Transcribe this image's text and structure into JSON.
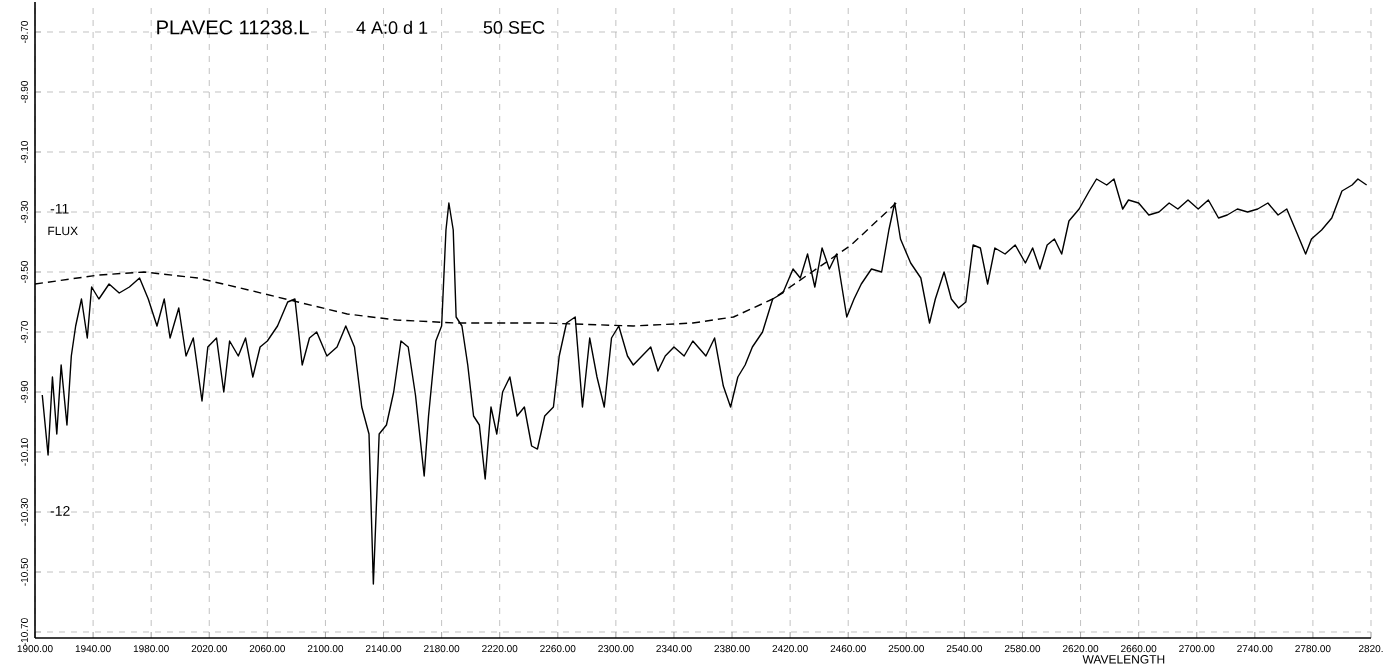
{
  "chart_data": {
    "type": "line",
    "title": "PLAVEC 11238.L",
    "xlabel": "WAVELENGTH",
    "annotations": [
      "4 A:0 d 1",
      "50 SEC",
      "-11",
      "FLUX",
      "-12"
    ],
    "xlim": [
      1900,
      2820
    ],
    "ylim": [
      -10.72,
      -8.6
    ],
    "xticks": [
      {
        "value": 1900,
        "label": "1900.00"
      },
      {
        "value": 1940,
        "label": "1940.00"
      },
      {
        "value": 1980,
        "label": "1980.00"
      },
      {
        "value": 2020,
        "label": "2020.00"
      },
      {
        "value": 2060,
        "label": "2060.00"
      },
      {
        "value": 2100,
        "label": "2100.00"
      },
      {
        "value": 2140,
        "label": "2140.00"
      },
      {
        "value": 2180,
        "label": "2180.00"
      },
      {
        "value": 2220,
        "label": "2220.00"
      },
      {
        "value": 2260,
        "label": "2260.00"
      },
      {
        "value": 2300,
        "label": "2300.00"
      },
      {
        "value": 2340,
        "label": "2340.00"
      },
      {
        "value": 2380,
        "label": "2380.00"
      },
      {
        "value": 2420,
        "label": "2420.00"
      },
      {
        "value": 2460,
        "label": "2460.00"
      },
      {
        "value": 2500,
        "label": "2500.00"
      },
      {
        "value": 2540,
        "label": "2540.00"
      },
      {
        "value": 2580,
        "label": "2580.00"
      },
      {
        "value": 2620,
        "label": "2620.00"
      },
      {
        "value": 2660,
        "label": "2660.00"
      },
      {
        "value": 2700,
        "label": "2700.00"
      },
      {
        "value": 2740,
        "label": "2740.00"
      },
      {
        "value": 2780,
        "label": "2780.00"
      },
      {
        "value": 2820,
        "label": "2820."
      }
    ],
    "yticks": [
      {
        "value": -8.7,
        "label": "-8.70"
      },
      {
        "value": -8.9,
        "label": "-8.90"
      },
      {
        "value": -9.1,
        "label": "-9.10"
      },
      {
        "value": -9.3,
        "label": "-9.30"
      },
      {
        "value": -9.5,
        "label": "-9.50"
      },
      {
        "value": -9.7,
        "label": "-9.70"
      },
      {
        "value": -9.9,
        "label": "-9.90"
      },
      {
        "value": -10.1,
        "label": "-10.10"
      },
      {
        "value": -10.3,
        "label": "-10.30"
      },
      {
        "value": -10.5,
        "label": "-10.50"
      },
      {
        "value": -10.7,
        "label": "-10.70"
      }
    ],
    "grid": true,
    "marker": "none",
    "series": [
      {
        "color": "#000000",
        "line_style": "solid",
        "x": [
          1905,
          1909,
          1912,
          1915,
          1918,
          1922,
          1925,
          1928,
          1932,
          1936,
          1939,
          1944,
          1951,
          1958,
          1965,
          1972,
          1978,
          1984,
          1989,
          1993,
          1999,
          2004,
          2009,
          2015,
          2019,
          2025,
          2030,
          2034,
          2040,
          2045,
          2050,
          2055,
          2060,
          2067,
          2074,
          2079,
          2084,
          2089,
          2094,
          2101,
          2108,
          2114,
          2120,
          2125,
          2130,
          2133,
          2137,
          2142,
          2147,
          2152,
          2157,
          2162,
          2168,
          2171,
          2176,
          2180,
          2183,
          2185,
          2188,
          2190,
          2194,
          2198,
          2202,
          2206,
          2210,
          2214,
          2218,
          2222,
          2227,
          2232,
          2237,
          2242,
          2246,
          2251,
          2257,
          2261,
          2266,
          2272,
          2277,
          2282,
          2287,
          2292,
          2297,
          2302,
          2308,
          2312,
          2318,
          2324,
          2329,
          2334,
          2340,
          2347,
          2353,
          2362,
          2368,
          2374,
          2379,
          2384,
          2389,
          2394,
          2401,
          2408,
          2415,
          2422,
          2427,
          2432,
          2437,
          2442,
          2447,
          2452,
          2459,
          2464,
          2469,
          2476,
          2483,
          2488,
          2492,
          2496,
          2503,
          2510,
          2516,
          2520,
          2526,
          2531,
          2536,
          2541,
          2546,
          2551,
          2556,
          2561,
          2568,
          2575,
          2582,
          2587,
          2592,
          2597,
          2602,
          2607,
          2612,
          2619,
          2626,
          2631,
          2638,
          2643,
          2649,
          2653,
          2660,
          2667,
          2674,
          2681,
          2687,
          2694,
          2701,
          2708,
          2715,
          2721,
          2728,
          2735,
          2742,
          2749,
          2756,
          2762,
          2769,
          2775,
          2779,
          2786,
          2793,
          2800,
          2807,
          2811,
          2817
        ],
        "values": [
          -9.91,
          -10.11,
          -9.85,
          -10.04,
          -9.81,
          -10.01,
          -9.78,
          -9.68,
          -9.59,
          -9.72,
          -9.55,
          -9.59,
          -9.54,
          -9.57,
          -9.55,
          -9.52,
          -9.59,
          -9.68,
          -9.59,
          -9.72,
          -9.62,
          -9.78,
          -9.72,
          -9.93,
          -9.75,
          -9.72,
          -9.9,
          -9.73,
          -9.78,
          -9.72,
          -9.85,
          -9.75,
          -9.73,
          -9.68,
          -9.6,
          -9.59,
          -9.81,
          -9.72,
          -9.7,
          -9.78,
          -9.75,
          -9.68,
          -9.75,
          -9.95,
          -10.04,
          -10.54,
          -10.04,
          -10.01,
          -9.9,
          -9.73,
          -9.75,
          -9.91,
          -10.18,
          -9.98,
          -9.73,
          -9.68,
          -9.36,
          -9.27,
          -9.36,
          -9.65,
          -9.68,
          -9.81,
          -9.98,
          -10.01,
          -10.19,
          -9.95,
          -10.04,
          -9.9,
          -9.85,
          -9.98,
          -9.95,
          -10.08,
          -10.09,
          -9.98,
          -9.95,
          -9.78,
          -9.67,
          -9.65,
          -9.95,
          -9.72,
          -9.85,
          -9.95,
          -9.72,
          -9.68,
          -9.78,
          -9.81,
          -9.78,
          -9.75,
          -9.83,
          -9.78,
          -9.75,
          -9.78,
          -9.73,
          -9.78,
          -9.72,
          -9.88,
          -9.95,
          -9.85,
          -9.81,
          -9.75,
          -9.7,
          -9.59,
          -9.57,
          -9.49,
          -9.52,
          -9.44,
          -9.55,
          -9.42,
          -9.49,
          -9.44,
          -9.65,
          -9.59,
          -9.54,
          -9.49,
          -9.5,
          -9.36,
          -9.27,
          -9.39,
          -9.47,
          -9.52,
          -9.67,
          -9.59,
          -9.5,
          -9.59,
          -9.62,
          -9.6,
          -9.41,
          -9.42,
          -9.54,
          -9.42,
          -9.44,
          -9.41,
          -9.47,
          -9.42,
          -9.49,
          -9.41,
          -9.39,
          -9.44,
          -9.33,
          -9.29,
          -9.23,
          -9.19,
          -9.21,
          -9.19,
          -9.29,
          -9.26,
          -9.27,
          -9.31,
          -9.3,
          -9.27,
          -9.29,
          -9.26,
          -9.29,
          -9.26,
          -9.32,
          -9.31,
          -9.29,
          -9.3,
          -9.29,
          -9.27,
          -9.31,
          -9.29,
          -9.37,
          -9.44,
          -9.39,
          -9.36,
          -9.32,
          -9.23,
          -9.21,
          -9.19,
          -9.21
        ]
      },
      {
        "color": "#000000",
        "line_style": "dashed",
        "x": [
          1900,
          1944,
          1975,
          2012,
          2047,
          2081,
          2115,
          2149,
          2190,
          2251,
          2312,
          2353,
          2381,
          2408,
          2435,
          2462,
          2493
        ],
        "values": [
          -9.54,
          -9.51,
          -9.5,
          -9.52,
          -9.56,
          -9.6,
          -9.64,
          -9.66,
          -9.67,
          -9.67,
          -9.68,
          -9.67,
          -9.65,
          -9.59,
          -9.5,
          -9.41,
          -9.27
        ]
      }
    ]
  }
}
